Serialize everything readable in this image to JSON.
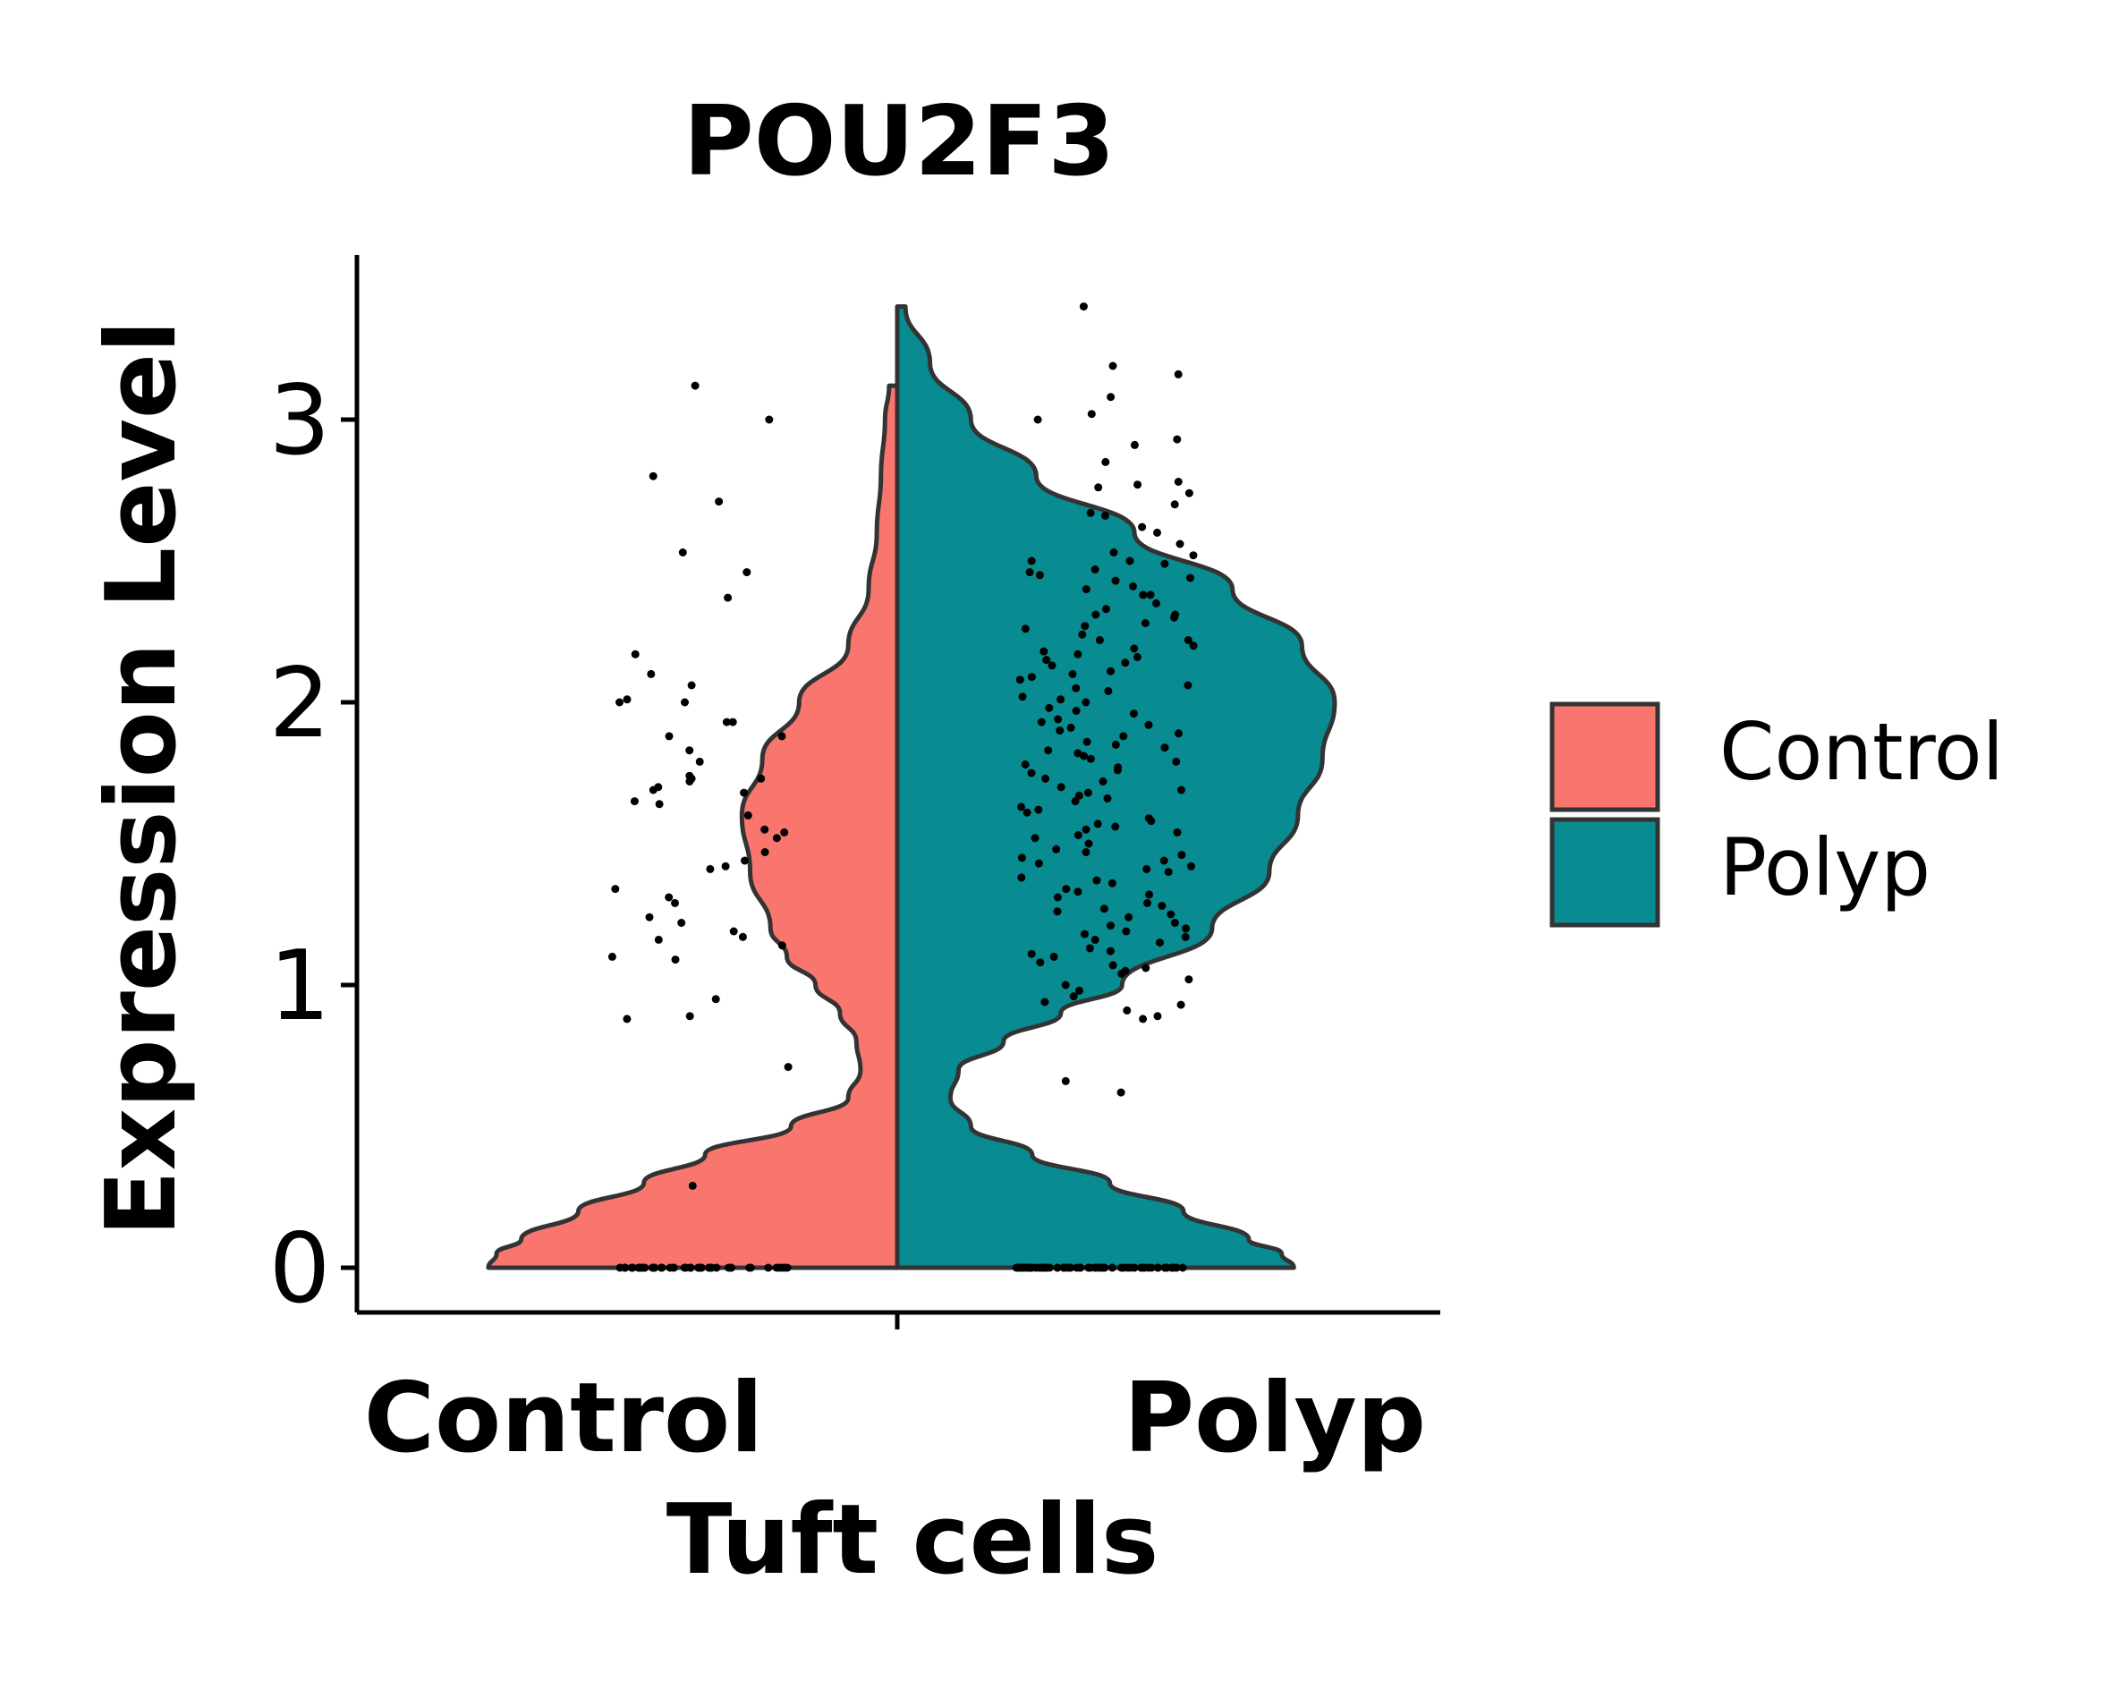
{
  "chart_data": {
    "type": "split-violin",
    "title": "POU2F3",
    "xlabel": "Tuft cells",
    "ylabel": "Expression Level",
    "x_ticks": [
      "Control",
      "Polyp"
    ],
    "y_ticks": [
      0,
      1,
      2,
      3
    ],
    "ylim": [
      -0.18,
      3.6
    ],
    "legend": {
      "placement": "right",
      "entries": [
        {
          "label": "Control",
          "color": "#F8766D"
        },
        {
          "label": "Polyp",
          "color": "#088B91"
        }
      ]
    },
    "series": [
      {
        "name": "Control",
        "color": "#F8766D",
        "side": "left",
        "max_density_side": 1.0,
        "density": [
          [
            0.0,
            1.0
          ],
          [
            0.05,
            0.98
          ],
          [
            0.1,
            0.92
          ],
          [
            0.2,
            0.78
          ],
          [
            0.3,
            0.62
          ],
          [
            0.4,
            0.47
          ],
          [
            0.5,
            0.26
          ],
          [
            0.6,
            0.12
          ],
          [
            0.7,
            0.09
          ],
          [
            0.8,
            0.1
          ],
          [
            0.9,
            0.14
          ],
          [
            1.0,
            0.2
          ],
          [
            1.1,
            0.27
          ],
          [
            1.2,
            0.31
          ],
          [
            1.4,
            0.36
          ],
          [
            1.6,
            0.38
          ],
          [
            1.8,
            0.33
          ],
          [
            2.0,
            0.24
          ],
          [
            2.2,
            0.12
          ],
          [
            2.4,
            0.07
          ],
          [
            2.6,
            0.05
          ],
          [
            2.8,
            0.04
          ],
          [
            3.0,
            0.03
          ],
          [
            3.12,
            0.02
          ]
        ],
        "points_at_zero": 45,
        "points": [
          3.0,
          3.12,
          2.8,
          2.71,
          2.53,
          2.46,
          2.37,
          2.17,
          2.1,
          2.06,
          2.01,
          2.0,
          2.0,
          1.93,
          1.93,
          1.88,
          1.88,
          1.83,
          1.79,
          1.74,
          1.73,
          1.73,
          1.72,
          1.7,
          1.69,
          1.68,
          1.65,
          1.64,
          1.6,
          1.55,
          1.54,
          1.52,
          1.47,
          1.44,
          1.42,
          1.41,
          1.34,
          1.31,
          1.29,
          1.24,
          1.22,
          1.19,
          1.17,
          1.16,
          1.14,
          1.1,
          1.09,
          0.95,
          0.89,
          0.88,
          0.71,
          0.29
        ]
      },
      {
        "name": "Polyp",
        "color": "#088B91",
        "side": "right",
        "max_density_side": 1.0,
        "density": [
          [
            0.0,
            0.97
          ],
          [
            0.05,
            0.94
          ],
          [
            0.1,
            0.86
          ],
          [
            0.2,
            0.7
          ],
          [
            0.3,
            0.52
          ],
          [
            0.4,
            0.33
          ],
          [
            0.5,
            0.18
          ],
          [
            0.6,
            0.13
          ],
          [
            0.7,
            0.15
          ],
          [
            0.8,
            0.26
          ],
          [
            0.9,
            0.4
          ],
          [
            1.0,
            0.55
          ],
          [
            1.2,
            0.77
          ],
          [
            1.4,
            0.91
          ],
          [
            1.6,
            0.98
          ],
          [
            1.8,
            1.04
          ],
          [
            2.0,
            1.07
          ],
          [
            2.2,
            0.99
          ],
          [
            2.4,
            0.82
          ],
          [
            2.6,
            0.58
          ],
          [
            2.8,
            0.34
          ],
          [
            3.0,
            0.18
          ],
          [
            3.2,
            0.08
          ],
          [
            3.4,
            0.02
          ]
        ],
        "points_at_zero": 60,
        "points": [
          3.4,
          3.19,
          3.16,
          3.08,
          3.02,
          3.0,
          2.93,
          2.91,
          2.85,
          2.78,
          2.77,
          2.76,
          2.74,
          2.7,
          2.67,
          2.66,
          2.62,
          2.6,
          2.56,
          2.53,
          2.52,
          2.5,
          2.49,
          2.47,
          2.46,
          2.44,
          2.43,
          2.41,
          2.4,
          2.38,
          2.35,
          2.33,
          2.31,
          2.3,
          2.28,
          2.26,
          2.24,
          2.22,
          2.2,
          2.19,
          2.18,
          2.16,
          2.15,
          2.13,
          2.11,
          2.1,
          2.08,
          2.06,
          2.04,
          2.02,
          2.0,
          1.98,
          1.96,
          1.94,
          1.92,
          1.91,
          1.89,
          1.88,
          1.86,
          1.84,
          1.83,
          1.82,
          1.8,
          1.79,
          1.77,
          1.75,
          1.73,
          1.72,
          1.7,
          1.68,
          1.66,
          1.65,
          1.63,
          1.61,
          1.59,
          1.57,
          1.56,
          1.54,
          1.52,
          1.5,
          1.48,
          1.47,
          1.45,
          1.43,
          1.41,
          1.4,
          1.38,
          1.36,
          1.34,
          1.33,
          1.31,
          1.29,
          1.27,
          1.26,
          1.24,
          1.22,
          1.2,
          1.18,
          1.17,
          1.15,
          1.13,
          1.11,
          1.1,
          1.08,
          1.06,
          1.04,
          1.02,
          1.0,
          0.98,
          0.96,
          0.94,
          0.93,
          0.91,
          0.89,
          0.88,
          0.66,
          0.62,
          2.45,
          2.38,
          2.22,
          2.14,
          2.05,
          1.97,
          1.85,
          1.76,
          1.62,
          1.55,
          1.44,
          1.32,
          1.21,
          1.12,
          1.05,
          2.27,
          2.09,
          1.93,
          1.81,
          1.69,
          1.58,
          1.46,
          1.37,
          1.25,
          1.16,
          2.5,
          2.31,
          2.17,
          2.01,
          1.9,
          1.78,
          1.67,
          1.53,
          1.42,
          1.28,
          1.19,
          1.07
        ]
      }
    ]
  }
}
